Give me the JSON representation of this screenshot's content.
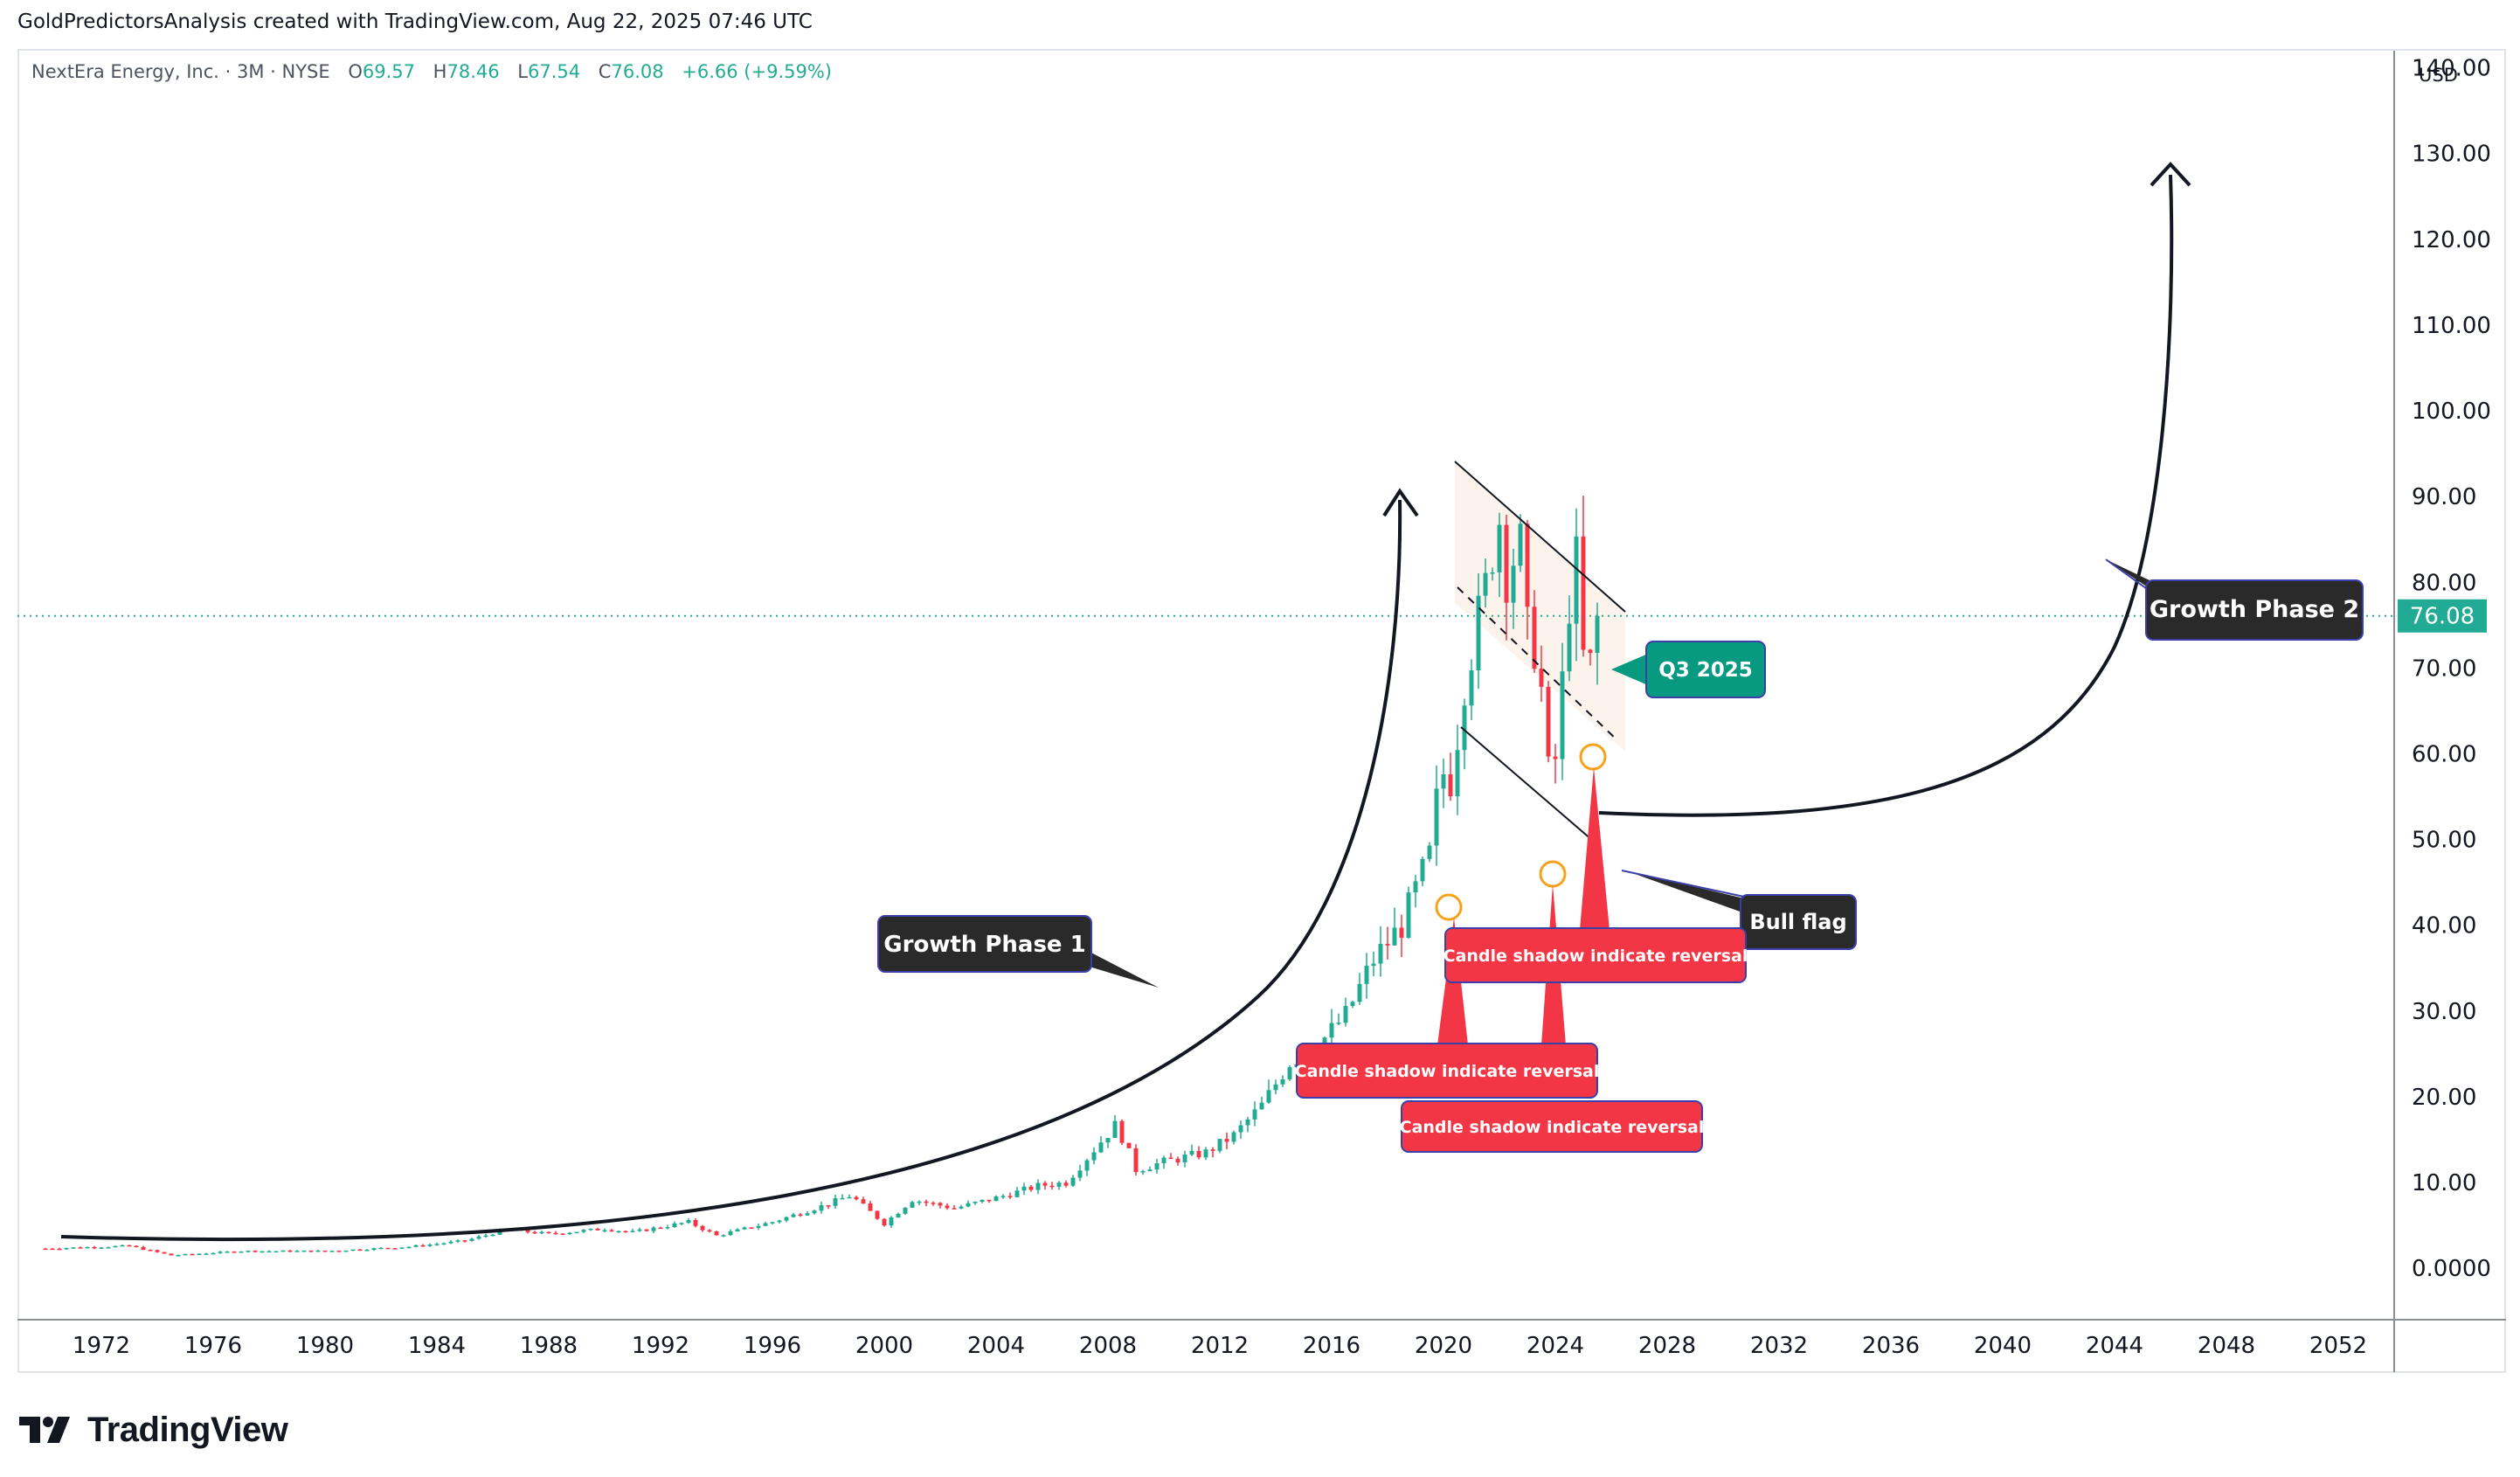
{
  "header": {
    "attribution": "GoldPredictorsAnalysis created with TradingView.com, Aug 22, 2025 07:46 UTC"
  },
  "legend": {
    "name": "NextEra Energy, Inc. · 3M · NYSE",
    "open_label": "O",
    "open": "69.57",
    "high_label": "H",
    "high": "78.46",
    "low_label": "L",
    "low": "67.54",
    "close_label": "C",
    "close": "76.08",
    "change": "+6.66 (+9.59%)"
  },
  "currency": "USD",
  "footer": {
    "brand": "TradingView",
    "logo_icon": "tradingview-logo-icon"
  },
  "colors": {
    "up": "#22ab94",
    "down": "#f23645",
    "price_label": "#22ab94",
    "callout_dark": "#2a2a2a",
    "callout_red": "#f23645",
    "callout_teal": "#089981",
    "circle": "#f7a21b"
  },
  "annotations": {
    "growth_phase_1": "Growth Phase 1",
    "growth_phase_2": "Growth Phase 2",
    "bull_flag": "Bull flag",
    "q3": "Q3 2025",
    "reversal_1": "Candle shadow indicate reversal",
    "reversal_2": "Candle shadow indicate reversal",
    "reversal_3": "Candle shadow indicate reversal"
  },
  "chart_data": {
    "type": "candlestick",
    "interval": "3M",
    "y_axis": {
      "ticks": [
        "140.00",
        "130.00",
        "120.00",
        "110.00",
        "100.00",
        "90.00",
        "80.00",
        "70.00",
        "60.00",
        "50.00",
        "40.00",
        "30.00",
        "20.00",
        "10.00",
        "0.0000"
      ],
      "range": [
        -6,
        142
      ],
      "current_price_label": "76.08",
      "current_price": 76.08
    },
    "x_axis": {
      "ticks": [
        "1972",
        "1976",
        "1980",
        "1984",
        "1988",
        "1992",
        "1996",
        "2000",
        "2004",
        "2008",
        "2012",
        "2016",
        "2020",
        "2024",
        "2028",
        "2032",
        "2036",
        "2040",
        "2044",
        "2048",
        "2052"
      ],
      "range": [
        1969,
        2054
      ]
    },
    "price_path": [
      [
        1970.0,
        2.3
      ],
      [
        1973.0,
        2.6
      ],
      [
        1974.5,
        1.5
      ],
      [
        1977.0,
        2.0
      ],
      [
        1980.0,
        2.0
      ],
      [
        1983.0,
        2.5
      ],
      [
        1985.0,
        3.2
      ],
      [
        1986.5,
        4.5
      ],
      [
        1988.0,
        4.0
      ],
      [
        1990.0,
        4.6
      ],
      [
        1991.0,
        4.2
      ],
      [
        1993.0,
        5.4
      ],
      [
        1994.0,
        3.8
      ],
      [
        1996.0,
        5.4
      ],
      [
        1998.0,
        7.5
      ],
      [
        1998.8,
        8.5
      ],
      [
        2000.0,
        5.2
      ],
      [
        2001.0,
        8.0
      ],
      [
        2002.5,
        7.0
      ],
      [
        2004.0,
        8.2
      ],
      [
        2005.5,
        9.6
      ],
      [
        2006.5,
        10.0
      ],
      [
        2007.8,
        15.0
      ],
      [
        2008.3,
        16.8
      ],
      [
        2009.0,
        11.5
      ],
      [
        2010.0,
        12.4
      ],
      [
        2011.5,
        13.5
      ],
      [
        2012.5,
        15.5
      ],
      [
        2013.5,
        19.0
      ],
      [
        2014.5,
        24.0
      ],
      [
        2015.5,
        26.0
      ],
      [
        2016.5,
        29.5
      ],
      [
        2017.5,
        36.0
      ],
      [
        2018.5,
        40.0
      ],
      [
        2019.5,
        48.0
      ],
      [
        2019.9,
        58.0
      ],
      [
        2020.3,
        57.0
      ],
      [
        2020.7,
        68.0
      ],
      [
        2021.2,
        75.0
      ],
      [
        2021.7,
        82.0
      ],
      [
        2021.9,
        90.0
      ],
      [
        2022.3,
        80.0
      ],
      [
        2022.7,
        86.0
      ],
      [
        2023.0,
        74.0
      ],
      [
        2023.4,
        72.0
      ],
      [
        2023.7,
        58.0
      ],
      [
        2023.9,
        56.0
      ],
      [
        2024.2,
        66.0
      ],
      [
        2024.5,
        78.0
      ],
      [
        2024.8,
        83.0
      ],
      [
        2025.0,
        71.0
      ],
      [
        2025.3,
        70.0
      ],
      [
        2025.55,
        76.08
      ]
    ],
    "patterns": [
      "Growth Phase 1",
      "Bull flag",
      "Growth Phase 2"
    ]
  }
}
